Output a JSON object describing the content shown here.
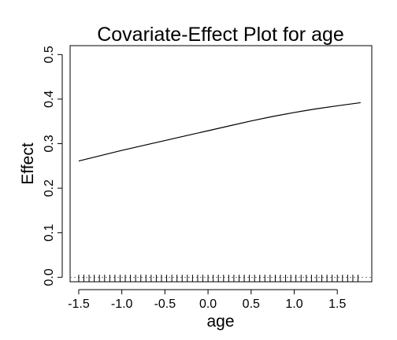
{
  "chart_data": {
    "type": "line",
    "title": "Covariate-Effect Plot for age",
    "xlabel": "age",
    "ylabel": "Effect",
    "xlim": [
      -1.6,
      1.9
    ],
    "ylim": [
      -0.01,
      0.52
    ],
    "x_ticks": [
      -1.5,
      -1.0,
      -0.5,
      0.0,
      0.5,
      1.0,
      1.5
    ],
    "x_tick_labels": [
      "-1.5",
      "-1.0",
      "-0.5",
      "0.0",
      "0.5",
      "1.0",
      "1.5"
    ],
    "y_ticks": [
      0.0,
      0.1,
      0.2,
      0.3,
      0.4,
      0.5
    ],
    "y_tick_labels": [
      "0.0",
      "0.1",
      "0.2",
      "0.3",
      "0.4",
      "0.5"
    ],
    "reference_line": {
      "y": 0.0,
      "style": "dotted"
    },
    "series": [
      {
        "x": [
          -1.5,
          -1.25,
          -1.0,
          -0.75,
          -0.5,
          -0.25,
          0.0,
          0.25,
          0.5,
          0.75,
          1.0,
          1.25,
          1.5,
          1.77
        ],
        "y": [
          0.261,
          0.273,
          0.285,
          0.296,
          0.307,
          0.318,
          0.329,
          0.34,
          0.351,
          0.361,
          0.37,
          0.378,
          0.385,
          0.392
        ]
      }
    ],
    "rug_x": [
      -1.5,
      -1.44,
      -1.38,
      -1.32,
      -1.26,
      -1.2,
      -1.14,
      -1.08,
      -1.02,
      -0.96,
      -0.9,
      -0.84,
      -0.78,
      -0.72,
      -0.66,
      -0.6,
      -0.54,
      -0.48,
      -0.42,
      -0.36,
      -0.3,
      -0.24,
      -0.18,
      -0.12,
      -0.06,
      0.0,
      0.06,
      0.12,
      0.18,
      0.24,
      0.3,
      0.36,
      0.42,
      0.48,
      0.54,
      0.6,
      0.66,
      0.72,
      0.78,
      0.84,
      0.9,
      0.96,
      1.02,
      1.08,
      1.14,
      1.2,
      1.26,
      1.32,
      1.38,
      1.44,
      1.5,
      1.56,
      1.62,
      1.68,
      1.74
    ],
    "grid": false,
    "legend": "none"
  }
}
